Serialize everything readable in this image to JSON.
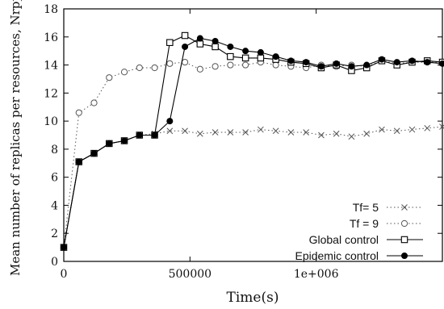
{
  "chart_data": {
    "type": "line",
    "xlabel": "Time(s)",
    "ylabel": "Mean number of replicas per resources, Nrpp",
    "xlim": [
      0,
      1500000
    ],
    "ylim": [
      0,
      18
    ],
    "x_ticks": [
      0,
      500000,
      1000000
    ],
    "x_tick_labels": [
      "0",
      "500000",
      "1e+006"
    ],
    "y_ticks": [
      0,
      2,
      4,
      6,
      8,
      10,
      12,
      14,
      16,
      18
    ],
    "y_tick_labels": [
      "0",
      "2",
      "4",
      "6",
      "8",
      "10",
      "12",
      "14",
      "16",
      "18"
    ],
    "grid": false,
    "legend_position": "bottom-right",
    "series": [
      {
        "name": "Tf= 5",
        "style": "dotted",
        "marker": "cross",
        "x": [
          0,
          60000,
          120000,
          180000,
          240000,
          300000,
          360000,
          420000,
          480000,
          540000,
          600000,
          660000,
          720000,
          780000,
          840000,
          900000,
          960000,
          1020000,
          1080000,
          1140000,
          1200000,
          1260000,
          1320000,
          1380000,
          1440000,
          1500000
        ],
        "y": [
          1,
          7.1,
          7.7,
          8.4,
          8.6,
          9.0,
          9.1,
          9.3,
          9.3,
          9.1,
          9.2,
          9.2,
          9.2,
          9.4,
          9.3,
          9.2,
          9.2,
          9.0,
          9.1,
          8.9,
          9.1,
          9.4,
          9.3,
          9.4,
          9.5,
          9.6
        ]
      },
      {
        "name": "Tf = 9",
        "style": "dotted",
        "marker": "open-circle",
        "x": [
          0,
          60000,
          120000,
          180000,
          240000,
          300000,
          360000,
          420000,
          480000,
          540000,
          600000,
          660000,
          720000,
          780000,
          840000,
          900000,
          960000,
          1020000,
          1080000,
          1140000,
          1200000,
          1260000,
          1320000,
          1380000,
          1440000,
          1500000
        ],
        "y": [
          1,
          10.6,
          11.3,
          13.1,
          13.5,
          13.8,
          13.8,
          14.1,
          14.2,
          13.7,
          13.9,
          14.0,
          14.0,
          14.2,
          14.0,
          13.9,
          13.8,
          14.0,
          13.9,
          14.0,
          13.9,
          14.3,
          14.1,
          14.2,
          14.2,
          14.2
        ]
      },
      {
        "name": "Global control",
        "style": "solid",
        "marker": "open-square",
        "x": [
          0,
          60000,
          120000,
          180000,
          240000,
          300000,
          360000,
          420000,
          480000,
          540000,
          600000,
          660000,
          720000,
          780000,
          840000,
          900000,
          960000,
          1020000,
          1080000,
          1140000,
          1200000,
          1260000,
          1320000,
          1380000,
          1440000,
          1500000
        ],
        "y": [
          1,
          7.1,
          7.7,
          8.4,
          8.6,
          9.0,
          9.0,
          15.6,
          16.1,
          15.5,
          15.3,
          14.6,
          14.5,
          14.5,
          14.4,
          14.2,
          14.1,
          13.8,
          14.0,
          13.6,
          13.8,
          14.3,
          14.0,
          14.2,
          14.3,
          14.2
        ]
      },
      {
        "name": "Epidemic control",
        "style": "solid",
        "marker": "filled-circle",
        "x": [
          0,
          60000,
          120000,
          180000,
          240000,
          300000,
          360000,
          420000,
          480000,
          540000,
          600000,
          660000,
          720000,
          780000,
          840000,
          900000,
          960000,
          1020000,
          1080000,
          1140000,
          1200000,
          1260000,
          1320000,
          1380000,
          1440000,
          1500000
        ],
        "y": [
          1,
          7.1,
          7.7,
          8.4,
          8.6,
          9.0,
          9.0,
          10.0,
          15.3,
          15.9,
          15.7,
          15.3,
          15.0,
          14.9,
          14.6,
          14.3,
          14.2,
          13.9,
          14.1,
          13.9,
          14.0,
          14.4,
          14.2,
          14.3,
          14.2,
          14.1
        ]
      }
    ]
  }
}
